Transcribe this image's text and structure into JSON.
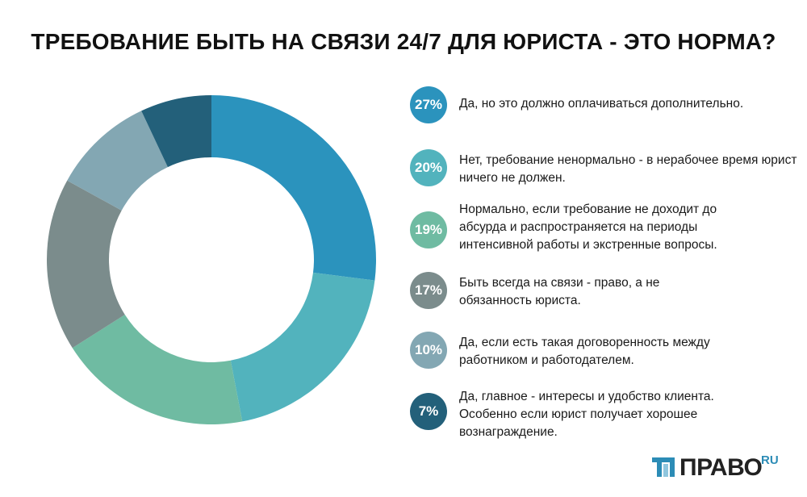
{
  "title": "ТРЕБОВАНИЕ БЫТЬ НА СВЯЗИ 24/7 ДЛЯ ЮРИСТА - ЭТО НОРМА?",
  "chart_data": {
    "type": "pie",
    "title": "ТРЕБОВАНИЕ БЫТЬ НА СВЯЗИ 24/7 ДЛЯ ЮРИСТА - ЭТО НОРМА?",
    "donut": true,
    "legend_position": "right",
    "slices": [
      {
        "value": 27,
        "label": "27%",
        "text": "Да, но это должно оплачиваться дополнительно.",
        "color": "#2b93bd"
      },
      {
        "value": 20,
        "label": "20%",
        "text": "Нет, требование ненормально - в нерабочее время юрист ничего не должен.",
        "color": "#52b3bd"
      },
      {
        "value": 19,
        "label": "19%",
        "text": "Нормально, если требование не доходит до абсурда и распространяется на периоды интенсивной работы и экстренные вопросы.",
        "color": "#6fbba2"
      },
      {
        "value": 17,
        "label": "17%",
        "text": "Быть всегда на связи - право, а не обязанность юриста.",
        "color": "#7b8c8c"
      },
      {
        "value": 10,
        "label": "10%",
        "text": "Да, если есть такая договоренность между работником и работодателем.",
        "color": "#83a7b3"
      },
      {
        "value": 7,
        "label": "7%",
        "text": "Да, главное - интересы и удобство клиента. Особенно если юрист получает хорошее вознаграждение.",
        "color": "#23607a"
      }
    ]
  },
  "logo": {
    "word": "ПРАВО",
    "suffix": "RU",
    "mark_color": "#2c8cb6"
  }
}
